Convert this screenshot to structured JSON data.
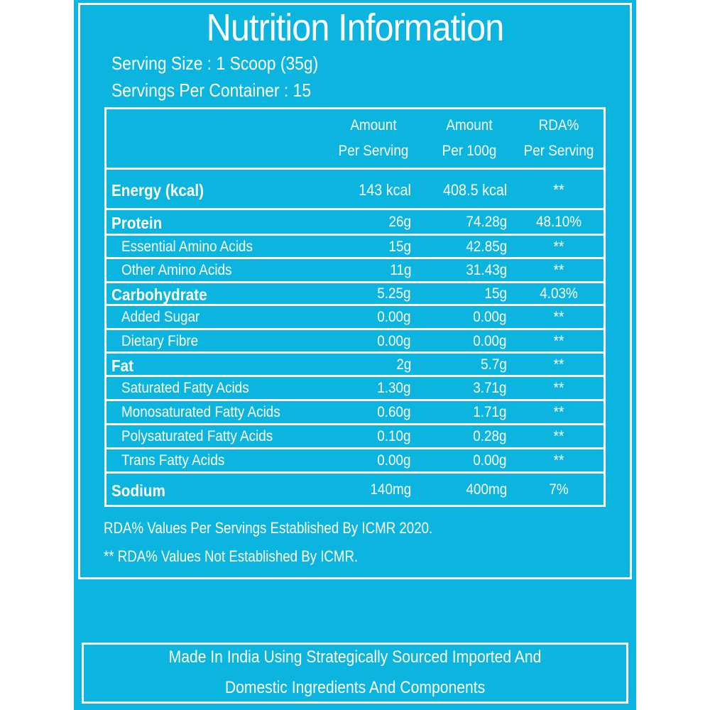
{
  "title": "Nutrition Information",
  "serving_size": "Serving Size : 1 Scoop (35g)",
  "servings_per_container": "Servings Per Container : 15",
  "headers": [
    {
      "line1": "Amount",
      "line2": "Per Serving"
    },
    {
      "line1": "Amount",
      "line2": "Per 100g"
    },
    {
      "line1": "RDA%",
      "line2": "Per Serving"
    }
  ],
  "rows": [
    {
      "name": "Energy (kcal)",
      "per_serving": "143 kcal",
      "per_100g": "408.5 kcal",
      "rda": "**"
    },
    {
      "name": "Protein",
      "per_serving": "26g",
      "per_100g": "74.28g",
      "rda": "48.10%"
    },
    {
      "name": "Essential Amino Acids",
      "per_serving": "15g",
      "per_100g": "42.85g",
      "rda": "**"
    },
    {
      "name": "Other Amino Acids",
      "per_serving": "11g",
      "per_100g": "31.43g",
      "rda": "**"
    },
    {
      "name": "Carbohydrate",
      "per_serving": "5.25g",
      "per_100g": "15g",
      "rda": "4.03%"
    },
    {
      "name": "Added Sugar",
      "per_serving": "0.00g",
      "per_100g": "0.00g",
      "rda": "**"
    },
    {
      "name": "Dietary Fibre",
      "per_serving": "0.00g",
      "per_100g": "0.00g",
      "rda": "**"
    },
    {
      "name": "Fat",
      "per_serving": "2g",
      "per_100g": "5.7g",
      "rda": "**"
    },
    {
      "name": "Saturated Fatty Acids",
      "per_serving": "1.30g",
      "per_100g": "3.71g",
      "rda": "**"
    },
    {
      "name": "Monosaturated Fatty Acids",
      "per_serving": "0.60g",
      "per_100g": "1.71g",
      "rda": "**"
    },
    {
      "name": "Polysaturated Fatty Acids",
      "per_serving": "0.10g",
      "per_100g": "0.28g",
      "rda": "**"
    },
    {
      "name": "Trans Fatty Acids",
      "per_serving": "0.00g",
      "per_100g": "0.00g",
      "rda": "**"
    },
    {
      "name": "Sodium",
      "per_serving": "140mg",
      "per_100g": "400mg",
      "rda": "7%"
    }
  ],
  "footnotes": [
    "RDA%  Values Per Servings Established By ICMR 2020.",
    "** RDA%  Values Not Established By ICMR."
  ],
  "bottom_text": [
    "Made In India Using Strategically Sourced Imported And",
    "Domestic Ingredients And Components"
  ]
}
